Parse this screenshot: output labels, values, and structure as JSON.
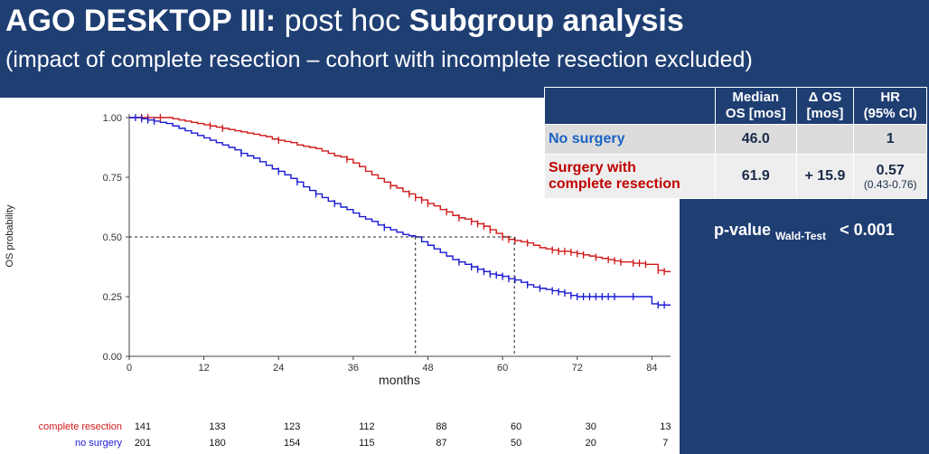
{
  "slide": {
    "title_bold_1": "AGO DESKTOP III:",
    "title_light": "post hoc",
    "title_bold_2": "Subgroup analysis",
    "subtitle": "(impact of complete resection –  cohort with incomplete resection excluded)"
  },
  "summary_table": {
    "headers": [
      "Median OS [mos]",
      "Δ OS [mos]",
      "HR (95% CI)"
    ],
    "header_line1": [
      "Median",
      "Δ OS",
      "HR"
    ],
    "header_line2": [
      "OS [mos]",
      "[mos]",
      "(95% CI)"
    ],
    "rows": [
      {
        "label": "No surgery",
        "median": "46.0",
        "delta": "",
        "hr": "1",
        "hr_ci": "",
        "color": "#1a63c6"
      },
      {
        "label_line1": "Surgery with",
        "label_line2": "complete resection",
        "median": "61.9",
        "delta": "+ 15.9",
        "hr": "0.57",
        "hr_ci": "(0.43-0.76)",
        "color": "#c00000"
      }
    ]
  },
  "pvalue": {
    "label": "p-value",
    "sub": "Wald-Test",
    "value": "< 0.001"
  },
  "colors": {
    "header_bg": "#1f3f73",
    "complete": "#d11a1a",
    "nosurgery": "#1a1ad6",
    "complete_label": "#c00000",
    "nosurgery_label": "#1a63c6"
  },
  "chart_data": {
    "type": "line",
    "title": "",
    "xlabel": "months",
    "ylabel": "OS probability",
    "xlim": [
      0,
      87
    ],
    "ylim": [
      0,
      1
    ],
    "xticks": [
      0,
      12,
      24,
      36,
      48,
      60,
      72,
      84
    ],
    "yticks": [
      0.0,
      0.25,
      0.5,
      0.75,
      1.0
    ],
    "ytick_labels": [
      "0.00",
      "0.25",
      "0.50",
      "0.75",
      "1.00"
    ],
    "median_line": {
      "y": 0.5,
      "x_values": [
        46.0,
        61.9
      ]
    },
    "series": [
      {
        "name": "complete resection",
        "color": "#d11a1a",
        "x": [
          0,
          1,
          2,
          3,
          4,
          5,
          6,
          7,
          8,
          9,
          10,
          11,
          12,
          13,
          14,
          15,
          16,
          17,
          18,
          19,
          20,
          21,
          22,
          23,
          24,
          25,
          26,
          27,
          28,
          29,
          30,
          31,
          32,
          33,
          34,
          35,
          36,
          37,
          38,
          39,
          40,
          41,
          42,
          43,
          44,
          45,
          46,
          47,
          48,
          49,
          50,
          51,
          52,
          53,
          54,
          55,
          56,
          57,
          58,
          59,
          60,
          61,
          62,
          63,
          64,
          65,
          66,
          67,
          68,
          69,
          70,
          71,
          72,
          73,
          74,
          75,
          76,
          77,
          78,
          79,
          80,
          81,
          82,
          83,
          84,
          85,
          86,
          87
        ],
        "y": [
          1.0,
          1.0,
          1.0,
          1.0,
          1.0,
          1.0,
          1.0,
          0.995,
          0.99,
          0.985,
          0.98,
          0.975,
          0.97,
          0.965,
          0.96,
          0.955,
          0.95,
          0.945,
          0.94,
          0.935,
          0.93,
          0.925,
          0.92,
          0.91,
          0.905,
          0.9,
          0.895,
          0.885,
          0.88,
          0.875,
          0.87,
          0.86,
          0.85,
          0.84,
          0.835,
          0.825,
          0.81,
          0.795,
          0.775,
          0.76,
          0.745,
          0.73,
          0.715,
          0.705,
          0.69,
          0.68,
          0.665,
          0.655,
          0.64,
          0.63,
          0.615,
          0.605,
          0.59,
          0.58,
          0.575,
          0.565,
          0.555,
          0.545,
          0.53,
          0.515,
          0.5,
          0.49,
          0.485,
          0.48,
          0.475,
          0.465,
          0.455,
          0.45,
          0.445,
          0.44,
          0.44,
          0.435,
          0.43,
          0.425,
          0.42,
          0.415,
          0.41,
          0.405,
          0.4,
          0.395,
          0.395,
          0.39,
          0.39,
          0.385,
          0.385,
          0.36,
          0.355,
          0.355
        ]
      },
      {
        "name": "no surgery",
        "color": "#1a1ad6",
        "x": [
          0,
          1,
          2,
          3,
          4,
          5,
          6,
          7,
          8,
          9,
          10,
          11,
          12,
          13,
          14,
          15,
          16,
          17,
          18,
          19,
          20,
          21,
          22,
          23,
          24,
          25,
          26,
          27,
          28,
          29,
          30,
          31,
          32,
          33,
          34,
          35,
          36,
          37,
          38,
          39,
          40,
          41,
          42,
          43,
          44,
          45,
          46,
          47,
          48,
          49,
          50,
          51,
          52,
          53,
          54,
          55,
          56,
          57,
          58,
          59,
          60,
          61,
          62,
          63,
          64,
          65,
          66,
          67,
          68,
          69,
          70,
          71,
          72,
          73,
          74,
          75,
          76,
          77,
          78,
          79,
          80,
          81,
          82,
          83,
          84,
          85,
          86,
          87
        ],
        "y": [
          1.0,
          1.0,
          0.995,
          0.99,
          0.985,
          0.98,
          0.975,
          0.965,
          0.955,
          0.945,
          0.935,
          0.925,
          0.915,
          0.905,
          0.895,
          0.885,
          0.875,
          0.865,
          0.85,
          0.84,
          0.83,
          0.815,
          0.8,
          0.785,
          0.775,
          0.76,
          0.745,
          0.73,
          0.71,
          0.695,
          0.68,
          0.665,
          0.65,
          0.64,
          0.625,
          0.615,
          0.6,
          0.585,
          0.575,
          0.565,
          0.55,
          0.54,
          0.53,
          0.52,
          0.51,
          0.505,
          0.5,
          0.48,
          0.465,
          0.45,
          0.435,
          0.42,
          0.405,
          0.395,
          0.385,
          0.375,
          0.365,
          0.355,
          0.345,
          0.34,
          0.335,
          0.325,
          0.32,
          0.31,
          0.3,
          0.29,
          0.285,
          0.28,
          0.275,
          0.27,
          0.265,
          0.255,
          0.25,
          0.25,
          0.25,
          0.25,
          0.25,
          0.25,
          0.25,
          0.25,
          0.25,
          0.25,
          0.25,
          0.25,
          0.22,
          0.215,
          0.215,
          0.215
        ]
      }
    ],
    "censor_marks": {
      "complete resection": [
        2,
        3,
        5,
        13,
        15,
        24,
        35,
        42,
        45,
        46,
        47,
        48,
        51,
        53,
        55,
        56,
        57,
        58,
        60,
        61,
        62,
        64,
        68,
        69,
        70,
        71,
        72,
        73,
        75,
        77,
        78,
        79,
        81,
        82,
        83,
        85,
        86
      ],
      "no surgery": [
        1,
        2,
        3,
        4,
        18,
        24,
        27,
        30,
        33,
        41,
        53,
        55,
        56,
        57,
        58,
        59,
        60,
        61,
        62,
        64,
        66,
        68,
        69,
        70,
        71,
        72,
        73,
        74,
        75,
        76,
        77,
        78,
        81,
        85,
        86
      ]
    },
    "risk_table": {
      "time_points": [
        0,
        12,
        24,
        36,
        48,
        60,
        72,
        84
      ],
      "rows": [
        {
          "name": "complete resection",
          "color": "#d11a1a",
          "counts": [
            "141",
            "133",
            "123",
            "112",
            "88",
            "60",
            "30",
            "13"
          ]
        },
        {
          "name": "no surgery",
          "color": "#1a1ad6",
          "counts": [
            "201",
            "180",
            "154",
            "115",
            "87",
            "50",
            "20",
            "7"
          ]
        }
      ]
    }
  }
}
